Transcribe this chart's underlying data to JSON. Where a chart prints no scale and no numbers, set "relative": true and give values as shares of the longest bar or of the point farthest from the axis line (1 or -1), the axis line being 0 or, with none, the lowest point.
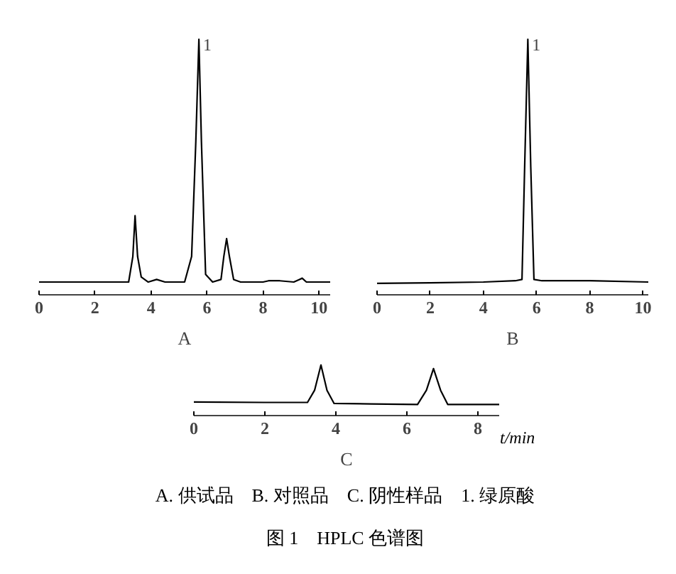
{
  "chart_data": [
    {
      "type": "line",
      "title": "A",
      "relative": true,
      "xlim": [
        0,
        10.4
      ],
      "xticks": [
        0,
        2,
        4,
        6,
        8,
        10
      ],
      "series": [
        {
          "color": "#000000",
          "x": [
            0,
            3.2,
            3.35,
            3.43,
            3.52,
            3.65,
            3.9,
            4.2,
            4.5,
            5.2,
            5.45,
            5.6,
            5.71,
            5.8,
            5.95,
            6.2,
            6.5,
            6.6,
            6.7,
            6.8,
            6.95,
            7.2,
            8,
            8.2,
            8.6,
            9.1,
            9.3,
            9.4,
            9.55,
            9.7,
            10.4
          ],
          "values": [
            0.05,
            0.05,
            0.15,
            0.31,
            0.15,
            0.07,
            0.05,
            0.06,
            0.05,
            0.05,
            0.15,
            0.6,
            1,
            0.6,
            0.08,
            0.05,
            0.06,
            0.15,
            0.22,
            0.15,
            0.06,
            0.05,
            0.05,
            0.055,
            0.055,
            0.05,
            0.06,
            0.065,
            0.05,
            0.05,
            0.05
          ]
        }
      ],
      "annotations": [
        {
          "text": "1",
          "x": 5.71,
          "y": 1
        }
      ]
    },
    {
      "type": "line",
      "title": "B",
      "relative": true,
      "xlim": [
        0,
        10.2
      ],
      "xticks": [
        0,
        2,
        4,
        6,
        8,
        10
      ],
      "series": [
        {
          "color": "#000000",
          "x": [
            0,
            2,
            4,
            5.2,
            5.45,
            5.55,
            5.67,
            5.78,
            5.9,
            6.2,
            8,
            10.2
          ],
          "values": [
            0.045,
            0.047,
            0.05,
            0.055,
            0.06,
            0.5,
            1,
            0.5,
            0.06,
            0.055,
            0.055,
            0.05
          ]
        }
      ],
      "annotations": [
        {
          "text": "1",
          "x": 5.67,
          "y": 1
        }
      ]
    },
    {
      "type": "line",
      "title": "C",
      "xlabel": "t/min",
      "relative": true,
      "xlim": [
        0,
        8.6
      ],
      "xticks": [
        0,
        2,
        4,
        6,
        8
      ],
      "series": [
        {
          "color": "#000000",
          "x": [
            0,
            2,
            3.2,
            3.4,
            3.58,
            3.75,
            3.95,
            5,
            6.3,
            6.55,
            6.75,
            6.95,
            7.15,
            8,
            8.6
          ],
          "values": [
            0.27,
            0.26,
            0.26,
            0.5,
            1,
            0.5,
            0.24,
            0.23,
            0.22,
            0.5,
            0.93,
            0.5,
            0.22,
            0.22,
            0.22
          ]
        }
      ],
      "annotations": [
        "A. 供试品　B. 对照品　C. 阴性样品　1. 绿原酸",
        "图 1　HPLC 色谱图"
      ]
    }
  ]
}
